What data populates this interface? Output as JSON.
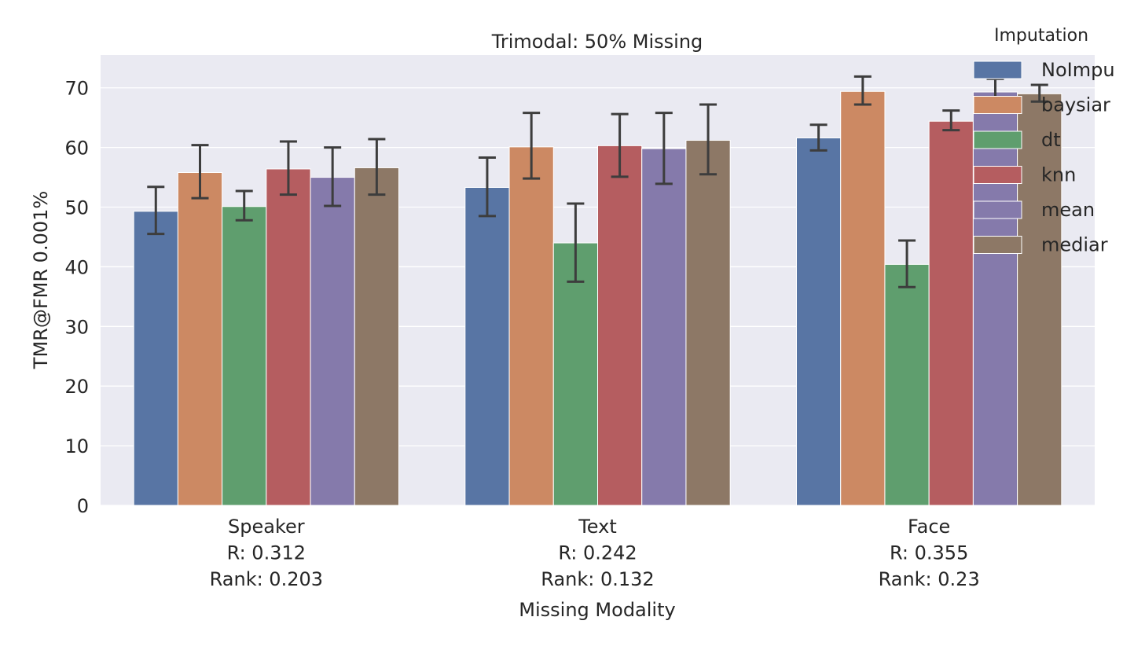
{
  "chart_data": {
    "type": "bar",
    "title": "Trimodal: 50% Missing",
    "xlabel": "Missing Modality",
    "ylabel": "TMR@FMR 0.001%",
    "ylim": [
      0,
      75.5
    ],
    "yticks": [
      0,
      10,
      20,
      30,
      40,
      50,
      60,
      70
    ],
    "grid": true,
    "categories": [
      [
        "Speaker",
        "R: 0.312",
        "Rank: 0.203"
      ],
      [
        "Text",
        "R: 0.242",
        "Rank: 0.132"
      ],
      [
        "Face",
        "R: 0.355",
        "Rank: 0.23"
      ]
    ],
    "legend": {
      "title": "Imputation",
      "placement": "top-right (clipped at right edge)"
    },
    "series": [
      {
        "name": "NoImpu",
        "color": "#5875a4",
        "values": [
          49.3,
          53.3,
          61.6
        ],
        "err_low": [
          45.5,
          48.5,
          59.5
        ],
        "err_high": [
          53.4,
          58.3,
          63.8
        ]
      },
      {
        "name": "baysiar",
        "color": "#cc8963",
        "values": [
          55.8,
          60.1,
          69.4
        ],
        "err_low": [
          51.5,
          54.8,
          67.2
        ],
        "err_high": [
          60.4,
          65.8,
          71.9
        ]
      },
      {
        "name": "dt",
        "color": "#5f9e6e",
        "values": [
          50.1,
          44.0,
          40.4
        ],
        "err_low": [
          47.8,
          37.5,
          36.6
        ],
        "err_high": [
          52.7,
          50.6,
          44.4
        ]
      },
      {
        "name": "knn",
        "color": "#b55d60",
        "values": [
          56.4,
          60.3,
          64.4
        ],
        "err_low": [
          52.1,
          55.1,
          62.9
        ],
        "err_high": [
          61.0,
          65.6,
          66.2
        ]
      },
      {
        "name": "mean",
        "color": "#857aab",
        "values": [
          55.0,
          59.8,
          69.3
        ],
        "err_low": [
          50.2,
          53.9,
          67.6
        ],
        "err_high": [
          60.0,
          65.8,
          71.5
        ]
      },
      {
        "name": "mediar",
        "color": "#8d7866",
        "values": [
          56.6,
          61.2,
          69.0
        ],
        "err_low": [
          52.1,
          55.5,
          67.7
        ],
        "err_high": [
          61.4,
          67.2,
          70.5
        ]
      }
    ]
  }
}
